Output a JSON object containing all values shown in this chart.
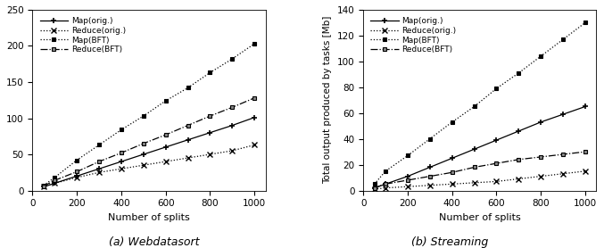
{
  "x": [
    50,
    100,
    200,
    300,
    400,
    500,
    600,
    700,
    800,
    900,
    1000
  ],
  "webdatasort": {
    "map_orig": [
      5,
      10,
      20,
      30,
      40,
      50,
      60,
      70,
      80,
      90,
      101
    ],
    "reduce_orig": [
      5,
      10,
      18,
      25,
      30,
      35,
      40,
      45,
      50,
      55,
      63
    ],
    "map_bft": [
      7,
      18,
      42,
      63,
      84,
      103,
      124,
      142,
      163,
      182,
      203
    ],
    "reduce_bft": [
      6,
      14,
      26,
      40,
      52,
      65,
      77,
      90,
      103,
      115,
      128
    ]
  },
  "streaming": {
    "map_orig": [
      2,
      5,
      11,
      18,
      25,
      32,
      39,
      46,
      53,
      59,
      65
    ],
    "reduce_orig": [
      1,
      2,
      3,
      4,
      5,
      6,
      7,
      9,
      11,
      13,
      15
    ],
    "map_bft": [
      5,
      15,
      27,
      40,
      53,
      65,
      79,
      91,
      104,
      117,
      130
    ],
    "reduce_bft": [
      2,
      5,
      8,
      11,
      14,
      18,
      21,
      24,
      26,
      28,
      30
    ]
  },
  "streaming_ylabel": "Total output produced by tasks [Mb]",
  "xlabel": "Number of splits",
  "title_a": "(a) Webdatasort",
  "title_b": "(b) Streaming",
  "legend_labels": [
    "Map(orig.)",
    "Reduce(orig.)",
    "Map(BFT)",
    "Reduce(BFT)"
  ],
  "ylim_a": [
    0,
    250
  ],
  "ylim_b": [
    0,
    140
  ],
  "yticks_a": [
    0,
    50,
    100,
    150,
    200,
    250
  ],
  "yticks_b": [
    0,
    20,
    40,
    60,
    80,
    100,
    120,
    140
  ],
  "xticks": [
    0,
    200,
    400,
    600,
    800,
    1000
  ],
  "line_color": "#000000",
  "styles": [
    {
      "ls": "-",
      "marker": "+",
      "ms": 5,
      "lw": 0.9,
      "mew": 1.2,
      "mfc": "none"
    },
    {
      "ls": ":",
      "marker": "x",
      "ms": 4,
      "lw": 0.9,
      "mew": 1.0,
      "mfc": "none"
    },
    {
      "ls": ":",
      "marker": "s",
      "ms": 3.5,
      "lw": 0.9,
      "mew": 0.8,
      "mfc": "#000000"
    },
    {
      "ls": "-.",
      "marker": "s",
      "ms": 3.5,
      "lw": 0.9,
      "mew": 0.8,
      "mfc": "#888888"
    }
  ],
  "title_fontsize": 9,
  "label_fontsize": 8,
  "legend_fontsize": 6.5,
  "tick_fontsize": 7.5
}
